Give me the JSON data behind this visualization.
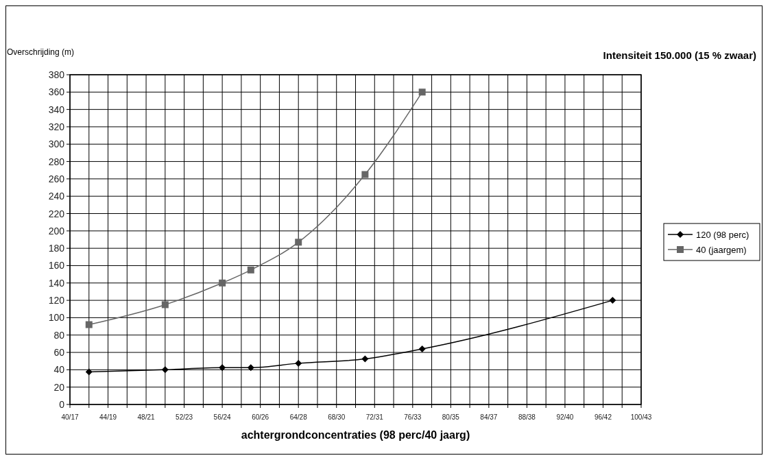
{
  "chart_data": {
    "type": "line",
    "title": "Intensiteit 150.000 (15 % zwaar)",
    "xlabel": "achtergrondconcentraties (98 perc/40 jaarg)",
    "ylabel": "Overschrijding (m)",
    "categories": [
      "40/17",
      null,
      null,
      null,
      "44/19",
      null,
      null,
      null,
      "48/21",
      null,
      null,
      null,
      "52/23",
      null,
      null,
      null,
      "56/24",
      null,
      null,
      null,
      "60/26",
      null,
      null,
      null,
      "64/28",
      null,
      null,
      null,
      "68/30",
      null,
      null,
      null,
      "72/31",
      null,
      null,
      null,
      "76/33",
      null,
      null,
      null,
      "80/35",
      null,
      null,
      null,
      "84/37",
      null,
      null,
      null,
      "88/38",
      null,
      null,
      null,
      "92/40",
      null,
      null,
      null,
      "96/42",
      null,
      null,
      null,
      "100/43"
    ],
    "series": [
      {
        "name": "120 (98 perc)",
        "color": "#000000",
        "marker": "diamond",
        "values": [
          null,
          null,
          37.5,
          null,
          null,
          null,
          null,
          null,
          null,
          null,
          40,
          null,
          null,
          null,
          null,
          null,
          42.5,
          null,
          null,
          42.5,
          null,
          null,
          null,
          null,
          47.5,
          null,
          null,
          null,
          null,
          null,
          null,
          52.5,
          null,
          null,
          null,
          null,
          null,
          64,
          null,
          null,
          null,
          null,
          null,
          null,
          null,
          null,
          null,
          null,
          null,
          null,
          null,
          null,
          null,
          null,
          null,
          null,
          null,
          120,
          null,
          null,
          null
        ]
      },
      {
        "name": "40 (jaargem)",
        "color": "#666666",
        "marker": "square",
        "values": [
          null,
          null,
          92,
          null,
          null,
          null,
          null,
          null,
          null,
          null,
          115,
          null,
          null,
          null,
          null,
          null,
          140,
          null,
          null,
          155,
          null,
          null,
          null,
          null,
          187,
          null,
          null,
          null,
          null,
          null,
          null,
          265,
          null,
          null,
          null,
          null,
          null,
          360,
          null,
          null,
          null,
          null,
          null,
          null,
          null,
          null,
          null,
          null,
          null,
          null,
          null,
          null,
          null,
          null,
          null,
          null,
          null,
          null,
          null,
          null,
          null
        ]
      }
    ],
    "ylim": [
      0,
      380
    ],
    "yticks": [
      0,
      20,
      40,
      60,
      80,
      100,
      120,
      140,
      160,
      180,
      200,
      220,
      240,
      260,
      280,
      300,
      320,
      340,
      360,
      380
    ],
    "grid": true,
    "legend": "right",
    "line_style": "solid"
  }
}
